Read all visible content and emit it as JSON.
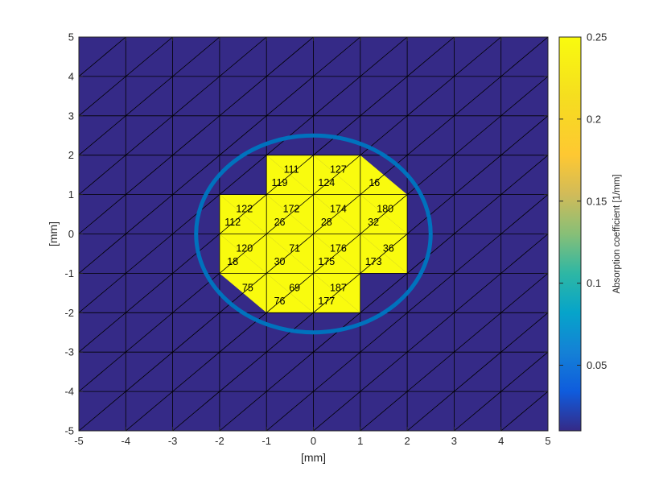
{
  "chart_data": {
    "type": "heatmap",
    "xlabel": "[mm]",
    "ylabel": "[mm]",
    "xlim": [
      -5,
      5
    ],
    "ylim": [
      -5,
      5
    ],
    "xticks": [
      "-5",
      "-4",
      "-3",
      "-2",
      "-1",
      "0",
      "1",
      "2",
      "3",
      "4",
      "5"
    ],
    "yticks": [
      "-5",
      "-4",
      "-3",
      "-2",
      "-1",
      "0",
      "1",
      "2",
      "3",
      "4",
      "5"
    ],
    "mesh": {
      "x_range": [
        -5,
        5
      ],
      "y_range": [
        -5,
        5
      ],
      "step": 1,
      "diagonal": "top-left-to-bottom-right"
    },
    "background_value": 0.01,
    "highlighted_value": 0.25,
    "highlighted_elements": [
      {
        "label": "111",
        "vertices": [
          [
            -1,
            2
          ],
          [
            0,
            2
          ],
          [
            0,
            1
          ]
        ],
        "label_pos": [
          -0.47,
          1.62
        ]
      },
      {
        "label": "119",
        "vertices": [
          [
            -1,
            2
          ],
          [
            -1,
            1
          ],
          [
            0,
            1
          ]
        ],
        "label_pos": [
          -0.72,
          1.28
        ]
      },
      {
        "label": "127",
        "vertices": [
          [
            0,
            2
          ],
          [
            1,
            2
          ],
          [
            1,
            1
          ]
        ],
        "label_pos": [
          0.53,
          1.62
        ]
      },
      {
        "label": "124",
        "vertices": [
          [
            0,
            2
          ],
          [
            0,
            1
          ],
          [
            1,
            1
          ]
        ],
        "label_pos": [
          0.28,
          1.28
        ]
      },
      {
        "label": "16",
        "vertices": [
          [
            1,
            2
          ],
          [
            1,
            1
          ],
          [
            2,
            1
          ]
        ],
        "label_pos": [
          1.3,
          1.28
        ]
      },
      {
        "label": "122",
        "vertices": [
          [
            -2,
            1
          ],
          [
            -1,
            1
          ],
          [
            -1,
            0
          ]
        ],
        "label_pos": [
          -1.47,
          0.62
        ]
      },
      {
        "label": "112",
        "vertices": [
          [
            -2,
            1
          ],
          [
            -2,
            0
          ],
          [
            -1,
            0
          ]
        ],
        "label_pos": [
          -1.72,
          0.28
        ]
      },
      {
        "label": "172",
        "vertices": [
          [
            -1,
            1
          ],
          [
            0,
            1
          ],
          [
            0,
            0
          ]
        ],
        "label_pos": [
          -0.47,
          0.62
        ]
      },
      {
        "label": "26",
        "vertices": [
          [
            -1,
            1
          ],
          [
            -1,
            0
          ],
          [
            0,
            0
          ]
        ],
        "label_pos": [
          -0.72,
          0.28
        ]
      },
      {
        "label": "174",
        "vertices": [
          [
            0,
            1
          ],
          [
            1,
            1
          ],
          [
            1,
            0
          ]
        ],
        "label_pos": [
          0.53,
          0.62
        ]
      },
      {
        "label": "28",
        "vertices": [
          [
            0,
            1
          ],
          [
            0,
            0
          ],
          [
            1,
            0
          ]
        ],
        "label_pos": [
          0.28,
          0.28
        ]
      },
      {
        "label": "180",
        "vertices": [
          [
            1,
            1
          ],
          [
            2,
            1
          ],
          [
            2,
            0
          ]
        ],
        "label_pos": [
          1.53,
          0.62
        ]
      },
      {
        "label": "32",
        "vertices": [
          [
            1,
            1
          ],
          [
            1,
            0
          ],
          [
            2,
            0
          ]
        ],
        "label_pos": [
          1.28,
          0.28
        ]
      },
      {
        "label": "120",
        "vertices": [
          [
            -2,
            0
          ],
          [
            -1,
            0
          ],
          [
            -1,
            -1
          ]
        ],
        "label_pos": [
          -1.47,
          -0.38
        ]
      },
      {
        "label": "18",
        "vertices": [
          [
            -2,
            0
          ],
          [
            -2,
            -1
          ],
          [
            -1,
            -1
          ]
        ],
        "label_pos": [
          -1.72,
          -0.72
        ]
      },
      {
        "label": "71",
        "vertices": [
          [
            -1,
            0
          ],
          [
            0,
            0
          ],
          [
            0,
            -1
          ]
        ],
        "label_pos": [
          -0.4,
          -0.38
        ]
      },
      {
        "label": "30",
        "vertices": [
          [
            -1,
            0
          ],
          [
            -1,
            -1
          ],
          [
            0,
            -1
          ]
        ],
        "label_pos": [
          -0.72,
          -0.72
        ]
      },
      {
        "label": "176",
        "vertices": [
          [
            0,
            0
          ],
          [
            1,
            0
          ],
          [
            1,
            -1
          ]
        ],
        "label_pos": [
          0.53,
          -0.38
        ]
      },
      {
        "label": "175",
        "vertices": [
          [
            0,
            0
          ],
          [
            0,
            -1
          ],
          [
            1,
            -1
          ]
        ],
        "label_pos": [
          0.28,
          -0.72
        ]
      },
      {
        "label": "36",
        "vertices": [
          [
            1,
            0
          ],
          [
            2,
            0
          ],
          [
            2,
            -1
          ]
        ],
        "label_pos": [
          1.6,
          -0.38
        ]
      },
      {
        "label": "173",
        "vertices": [
          [
            1,
            0
          ],
          [
            1,
            -1
          ],
          [
            2,
            -1
          ]
        ],
        "label_pos": [
          1.28,
          -0.72
        ]
      },
      {
        "label": "75",
        "vertices": [
          [
            -2,
            -1
          ],
          [
            -1,
            -1
          ],
          [
            -1,
            -2
          ]
        ],
        "label_pos": [
          -1.4,
          -1.38
        ]
      },
      {
        "label": "69",
        "vertices": [
          [
            -1,
            -1
          ],
          [
            0,
            -1
          ],
          [
            0,
            -2
          ]
        ],
        "label_pos": [
          -0.4,
          -1.38
        ]
      },
      {
        "label": "76",
        "vertices": [
          [
            -1,
            -1
          ],
          [
            -1,
            -2
          ],
          [
            0,
            -2
          ]
        ],
        "label_pos": [
          -0.72,
          -1.72
        ]
      },
      {
        "label": "187",
        "vertices": [
          [
            0,
            -1
          ],
          [
            1,
            -1
          ],
          [
            1,
            -2
          ]
        ],
        "label_pos": [
          0.53,
          -1.38
        ]
      },
      {
        "label": "177",
        "vertices": [
          [
            0,
            -1
          ],
          [
            0,
            -2
          ],
          [
            1,
            -2
          ]
        ],
        "label_pos": [
          0.28,
          -1.72
        ]
      }
    ],
    "ellipse": {
      "center": [
        0,
        0
      ],
      "rx": 2.5,
      "ry": 2.5,
      "color": "#0072BD"
    },
    "colorbar": {
      "label": "Absorption coefficient [1/mm]",
      "min": 0.01,
      "max": 0.25,
      "ticks": [
        0.05,
        0.1,
        0.15,
        0.2,
        0.25
      ],
      "tick_labels": [
        "0.05",
        "0.1",
        "0.15",
        "0.2",
        "0.25"
      ],
      "colormap": "parula"
    },
    "colors": {
      "background_fill": "#352A87",
      "highlight_fill": "#F9FB0E",
      "mesh_edge": "#000000",
      "ellipse": "#0072BD"
    }
  }
}
